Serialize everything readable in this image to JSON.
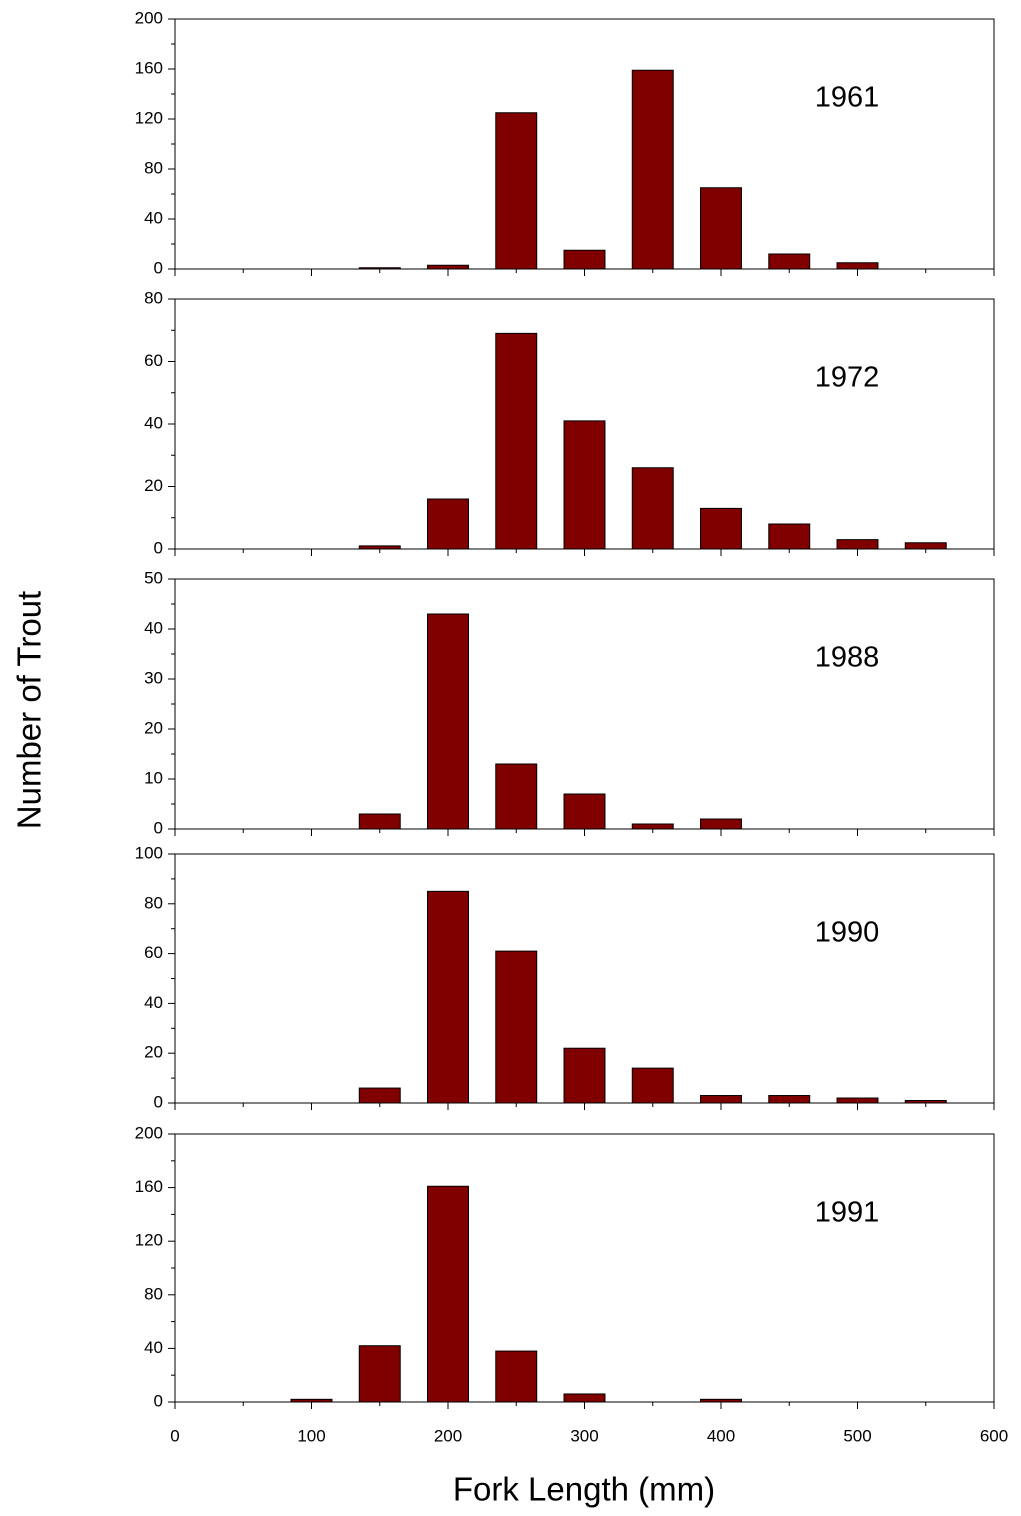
{
  "ylabel": "Number of Trout",
  "xlabel": "Fork Length (mm)",
  "chart_data": [
    {
      "type": "bar",
      "annotation": "1961",
      "color": "#800000",
      "x": [
        100,
        150,
        200,
        250,
        300,
        350,
        400,
        450,
        500,
        550
      ],
      "values": [
        0,
        1,
        3,
        125,
        15,
        159,
        65,
        12,
        5,
        0
      ],
      "xlim": [
        0,
        600
      ],
      "ylim": [
        0,
        200
      ],
      "yticks": [
        0,
        40,
        80,
        120,
        160,
        200
      ]
    },
    {
      "type": "bar",
      "annotation": "1972",
      "color": "#800000",
      "x": [
        100,
        150,
        200,
        250,
        300,
        350,
        400,
        450,
        500,
        550
      ],
      "values": [
        0,
        1,
        16,
        69,
        41,
        26,
        13,
        8,
        3,
        2
      ],
      "xlim": [
        0,
        600
      ],
      "ylim": [
        0,
        80
      ],
      "yticks": [
        0,
        20,
        40,
        60,
        80
      ]
    },
    {
      "type": "bar",
      "annotation": "1988",
      "color": "#800000",
      "x": [
        100,
        150,
        200,
        250,
        300,
        350,
        400,
        450,
        500,
        550
      ],
      "values": [
        0,
        3,
        43,
        13,
        7,
        1,
        2,
        0,
        0,
        0
      ],
      "xlim": [
        0,
        600
      ],
      "ylim": [
        0,
        50
      ],
      "yticks": [
        0,
        10,
        20,
        30,
        40,
        50
      ]
    },
    {
      "type": "bar",
      "annotation": "1990",
      "color": "#800000",
      "x": [
        100,
        150,
        200,
        250,
        300,
        350,
        400,
        450,
        500,
        550
      ],
      "values": [
        0,
        6,
        85,
        61,
        22,
        14,
        3,
        3,
        2,
        1
      ],
      "xlim": [
        0,
        600
      ],
      "ylim": [
        0,
        100
      ],
      "yticks": [
        0,
        20,
        40,
        60,
        80,
        100
      ]
    },
    {
      "type": "bar",
      "annotation": "1991",
      "color": "#800000",
      "x": [
        100,
        150,
        200,
        250,
        300,
        350,
        400,
        450,
        500,
        550
      ],
      "values": [
        2,
        42,
        161,
        38,
        6,
        0,
        2,
        0,
        0,
        0
      ],
      "xlim": [
        0,
        600
      ],
      "ylim": [
        0,
        200
      ],
      "yticks": [
        0,
        40,
        80,
        120,
        160,
        200
      ],
      "xticks": [
        0,
        100,
        200,
        300,
        400,
        500,
        600
      ]
    }
  ]
}
